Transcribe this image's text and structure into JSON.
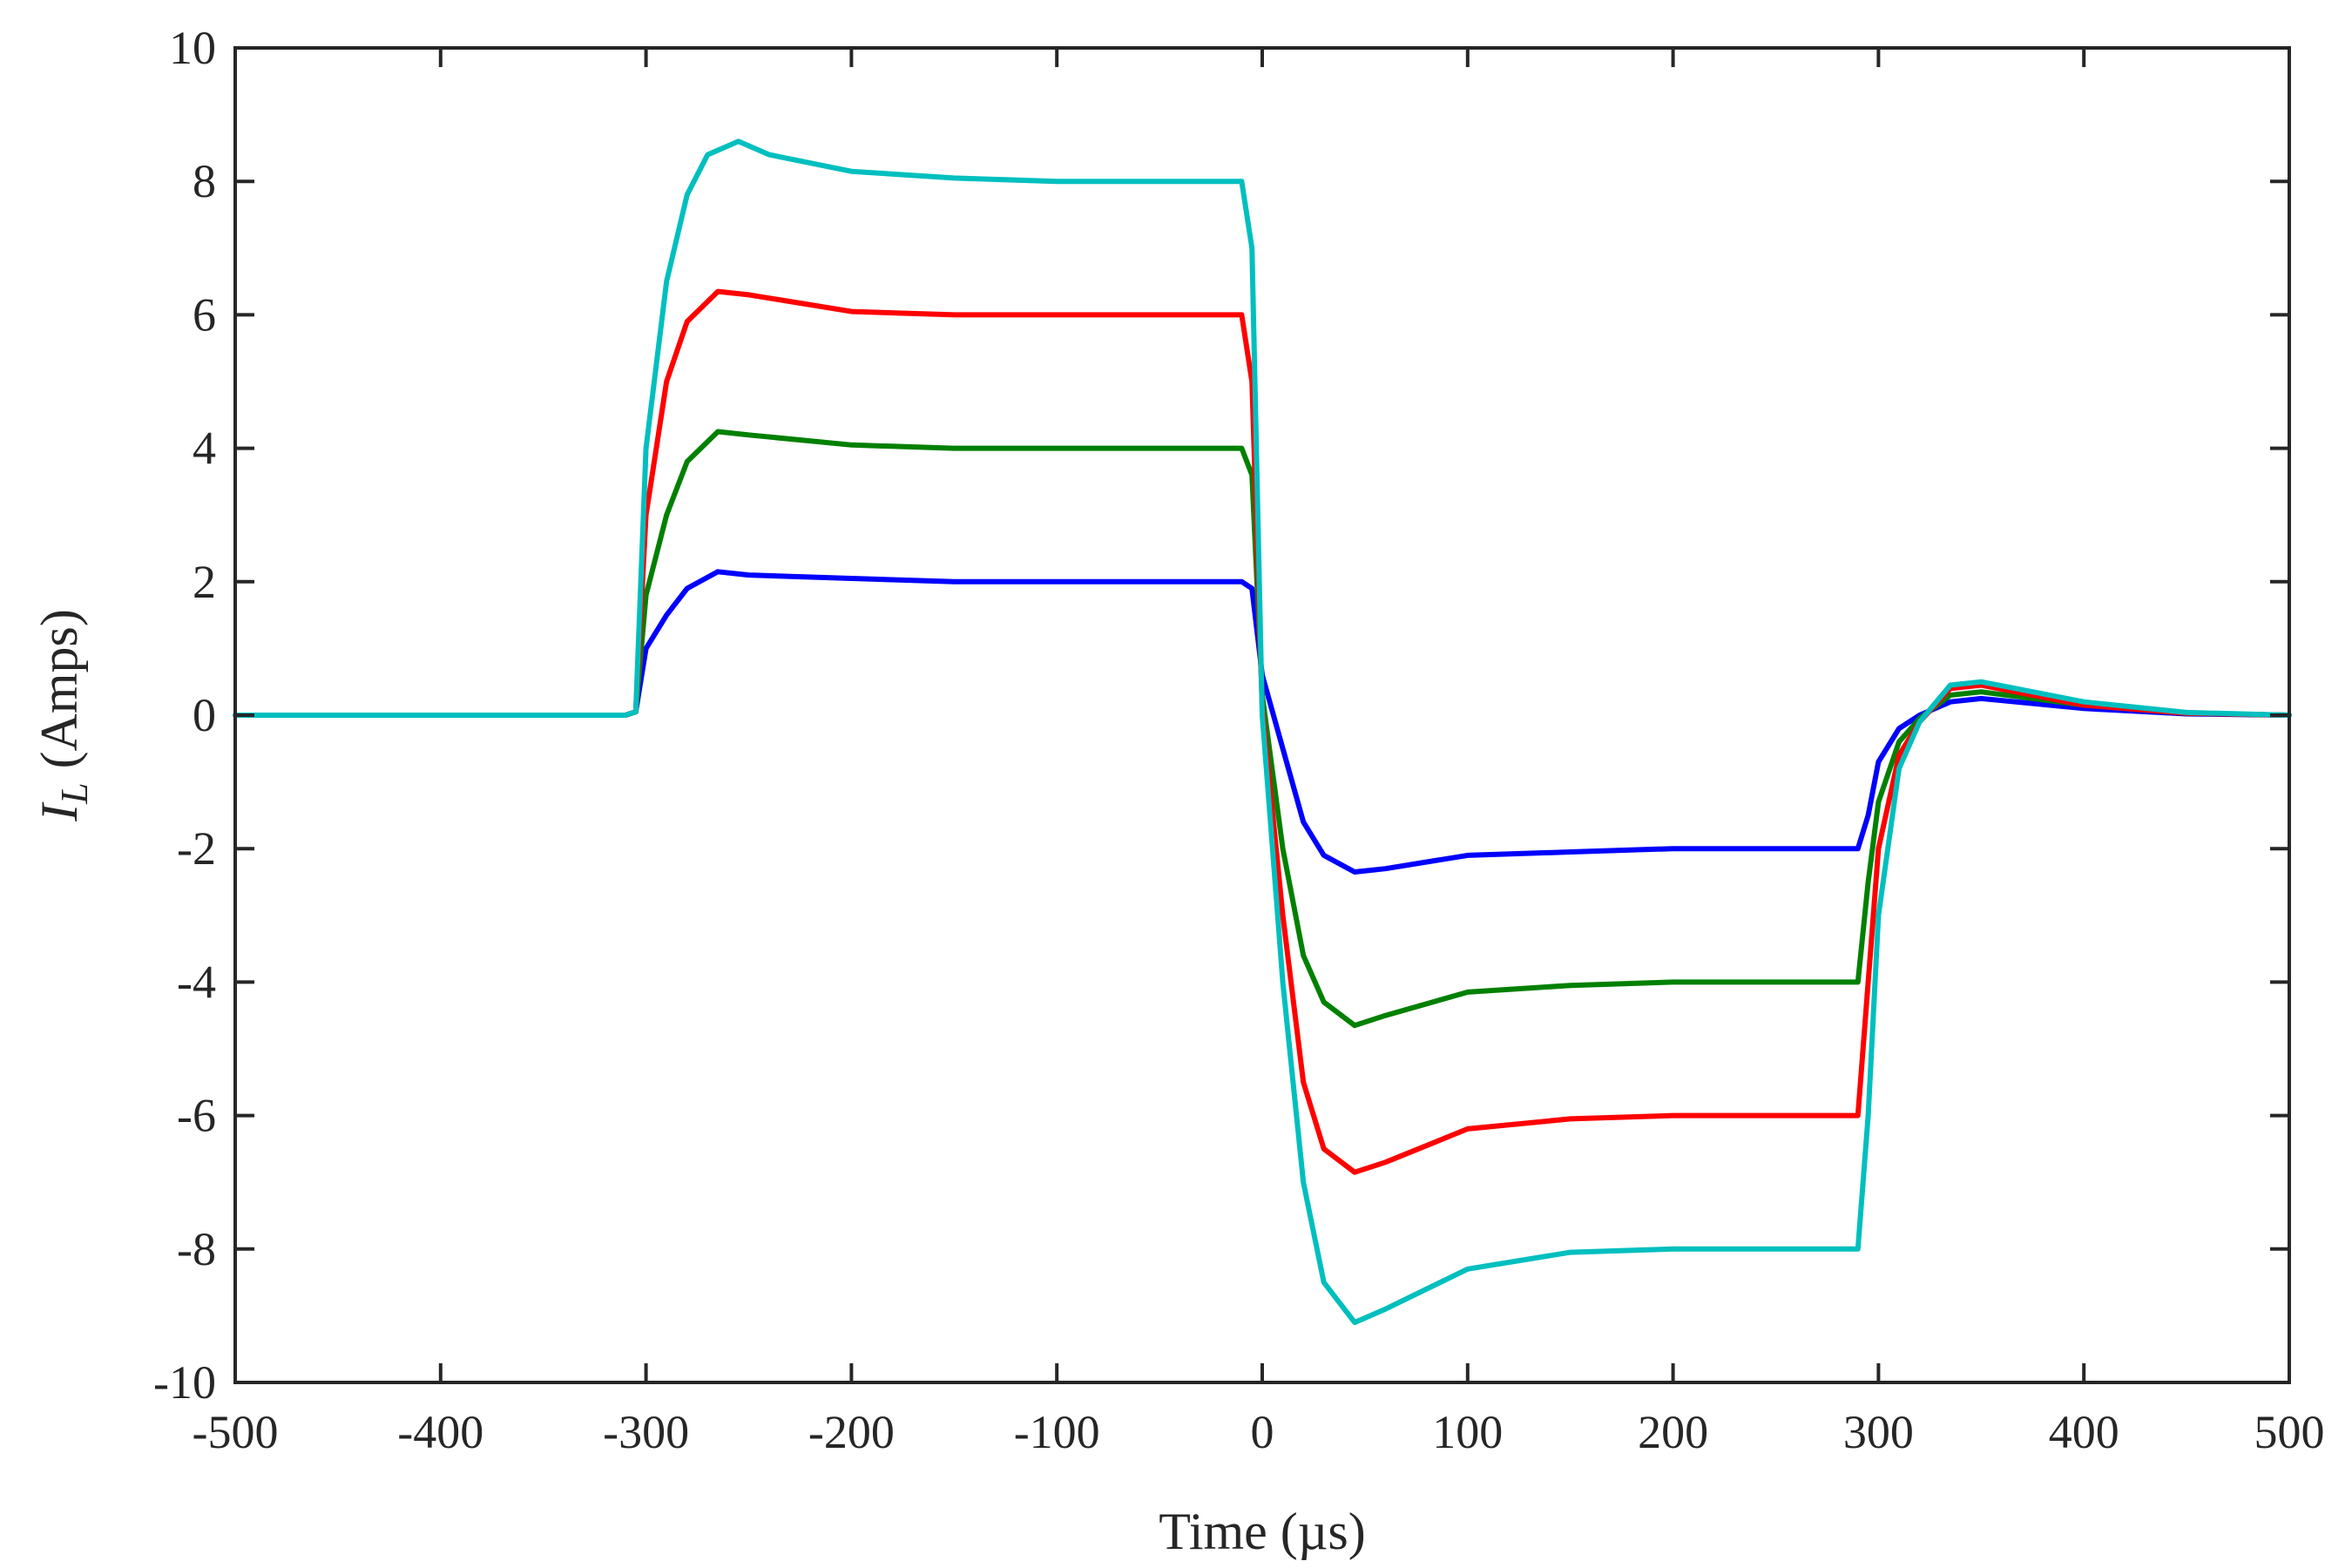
{
  "chart_data": {
    "type": "line",
    "title": "",
    "xlabel": "Time (µs)",
    "ylabel": {
      "symbol": "I",
      "subscript": "L",
      "unit": "(Amps)"
    },
    "xlim": [
      -500,
      500
    ],
    "ylim": [
      -10,
      10
    ],
    "xticks": [
      -500,
      -400,
      -300,
      -200,
      -100,
      0,
      100,
      200,
      300,
      400,
      500
    ],
    "yticks": [
      10,
      8,
      6,
      4,
      2,
      0,
      -2,
      -4,
      -6,
      -8,
      -10
    ],
    "grid": false,
    "legend": "none",
    "series": [
      {
        "color": "#0000FF",
        "points": [
          [
            -500,
            0
          ],
          [
            -310,
            0
          ],
          [
            -305,
            0.05
          ],
          [
            -300,
            1.0
          ],
          [
            -290,
            1.5
          ],
          [
            -280,
            1.9
          ],
          [
            -265,
            2.15
          ],
          [
            -250,
            2.1
          ],
          [
            -200,
            2.05
          ],
          [
            -150,
            2.0
          ],
          [
            -100,
            2.0
          ],
          [
            -50,
            2.0
          ],
          [
            -10,
            2.0
          ],
          [
            -5,
            1.9
          ],
          [
            0,
            0.6
          ],
          [
            10,
            -0.5
          ],
          [
            20,
            -1.6
          ],
          [
            30,
            -2.1
          ],
          [
            45,
            -2.35
          ],
          [
            60,
            -2.3
          ],
          [
            100,
            -2.1
          ],
          [
            150,
            -2.05
          ],
          [
            200,
            -2.0
          ],
          [
            250,
            -2.0
          ],
          [
            290,
            -2.0
          ],
          [
            295,
            -1.5
          ],
          [
            300,
            -0.7
          ],
          [
            310,
            -0.2
          ],
          [
            320,
            0.0
          ],
          [
            335,
            0.2
          ],
          [
            350,
            0.25
          ],
          [
            400,
            0.1
          ],
          [
            450,
            0.02
          ],
          [
            500,
            0
          ]
        ]
      },
      {
        "color": "#008000",
        "points": [
          [
            -500,
            0
          ],
          [
            -310,
            0
          ],
          [
            -305,
            0.05
          ],
          [
            -300,
            1.8
          ],
          [
            -290,
            3.0
          ],
          [
            -280,
            3.8
          ],
          [
            -265,
            4.25
          ],
          [
            -250,
            4.2
          ],
          [
            -200,
            4.05
          ],
          [
            -150,
            4.0
          ],
          [
            -100,
            4.0
          ],
          [
            -50,
            4.0
          ],
          [
            -10,
            4.0
          ],
          [
            -5,
            3.6
          ],
          [
            0,
            0.3
          ],
          [
            10,
            -2.0
          ],
          [
            20,
            -3.6
          ],
          [
            30,
            -4.3
          ],
          [
            45,
            -4.65
          ],
          [
            60,
            -4.5
          ],
          [
            100,
            -4.15
          ],
          [
            150,
            -4.05
          ],
          [
            200,
            -4.0
          ],
          [
            250,
            -4.0
          ],
          [
            290,
            -4.0
          ],
          [
            295,
            -2.5
          ],
          [
            300,
            -1.3
          ],
          [
            310,
            -0.4
          ],
          [
            320,
            -0.05
          ],
          [
            335,
            0.3
          ],
          [
            350,
            0.35
          ],
          [
            400,
            0.15
          ],
          [
            450,
            0.03
          ],
          [
            500,
            0
          ]
        ]
      },
      {
        "color": "#FF0000",
        "points": [
          [
            -500,
            0
          ],
          [
            -310,
            0
          ],
          [
            -305,
            0.05
          ],
          [
            -300,
            3.0
          ],
          [
            -290,
            5.0
          ],
          [
            -280,
            5.9
          ],
          [
            -265,
            6.35
          ],
          [
            -250,
            6.3
          ],
          [
            -200,
            6.05
          ],
          [
            -150,
            6.0
          ],
          [
            -100,
            6.0
          ],
          [
            -50,
            6.0
          ],
          [
            -10,
            6.0
          ],
          [
            -5,
            5.0
          ],
          [
            0,
            0.1
          ],
          [
            10,
            -3.0
          ],
          [
            20,
            -5.5
          ],
          [
            30,
            -6.5
          ],
          [
            45,
            -6.85
          ],
          [
            60,
            -6.7
          ],
          [
            100,
            -6.2
          ],
          [
            150,
            -6.05
          ],
          [
            200,
            -6.0
          ],
          [
            250,
            -6.0
          ],
          [
            290,
            -6.0
          ],
          [
            295,
            -4.0
          ],
          [
            300,
            -2.0
          ],
          [
            310,
            -0.6
          ],
          [
            320,
            -0.1
          ],
          [
            335,
            0.4
          ],
          [
            350,
            0.45
          ],
          [
            400,
            0.15
          ],
          [
            450,
            0.03
          ],
          [
            500,
            0
          ]
        ]
      },
      {
        "color": "#00BFBF",
        "points": [
          [
            -500,
            0
          ],
          [
            -310,
            0
          ],
          [
            -305,
            0.05
          ],
          [
            -300,
            4.0
          ],
          [
            -290,
            6.5
          ],
          [
            -280,
            7.8
          ],
          [
            -270,
            8.4
          ],
          [
            -255,
            8.6
          ],
          [
            -240,
            8.4
          ],
          [
            -200,
            8.15
          ],
          [
            -150,
            8.05
          ],
          [
            -100,
            8.0
          ],
          [
            -50,
            8.0
          ],
          [
            -10,
            8.0
          ],
          [
            -5,
            7.0
          ],
          [
            0,
            0.0
          ],
          [
            10,
            -4.0
          ],
          [
            20,
            -7.0
          ],
          [
            30,
            -8.5
          ],
          [
            45,
            -9.1
          ],
          [
            60,
            -8.9
          ],
          [
            100,
            -8.3
          ],
          [
            150,
            -8.05
          ],
          [
            200,
            -8.0
          ],
          [
            250,
            -8.0
          ],
          [
            290,
            -8.0
          ],
          [
            295,
            -6.0
          ],
          [
            300,
            -3.0
          ],
          [
            310,
            -0.8
          ],
          [
            320,
            -0.1
          ],
          [
            335,
            0.45
          ],
          [
            350,
            0.5
          ],
          [
            400,
            0.2
          ],
          [
            450,
            0.04
          ],
          [
            500,
            0
          ]
        ]
      }
    ]
  }
}
